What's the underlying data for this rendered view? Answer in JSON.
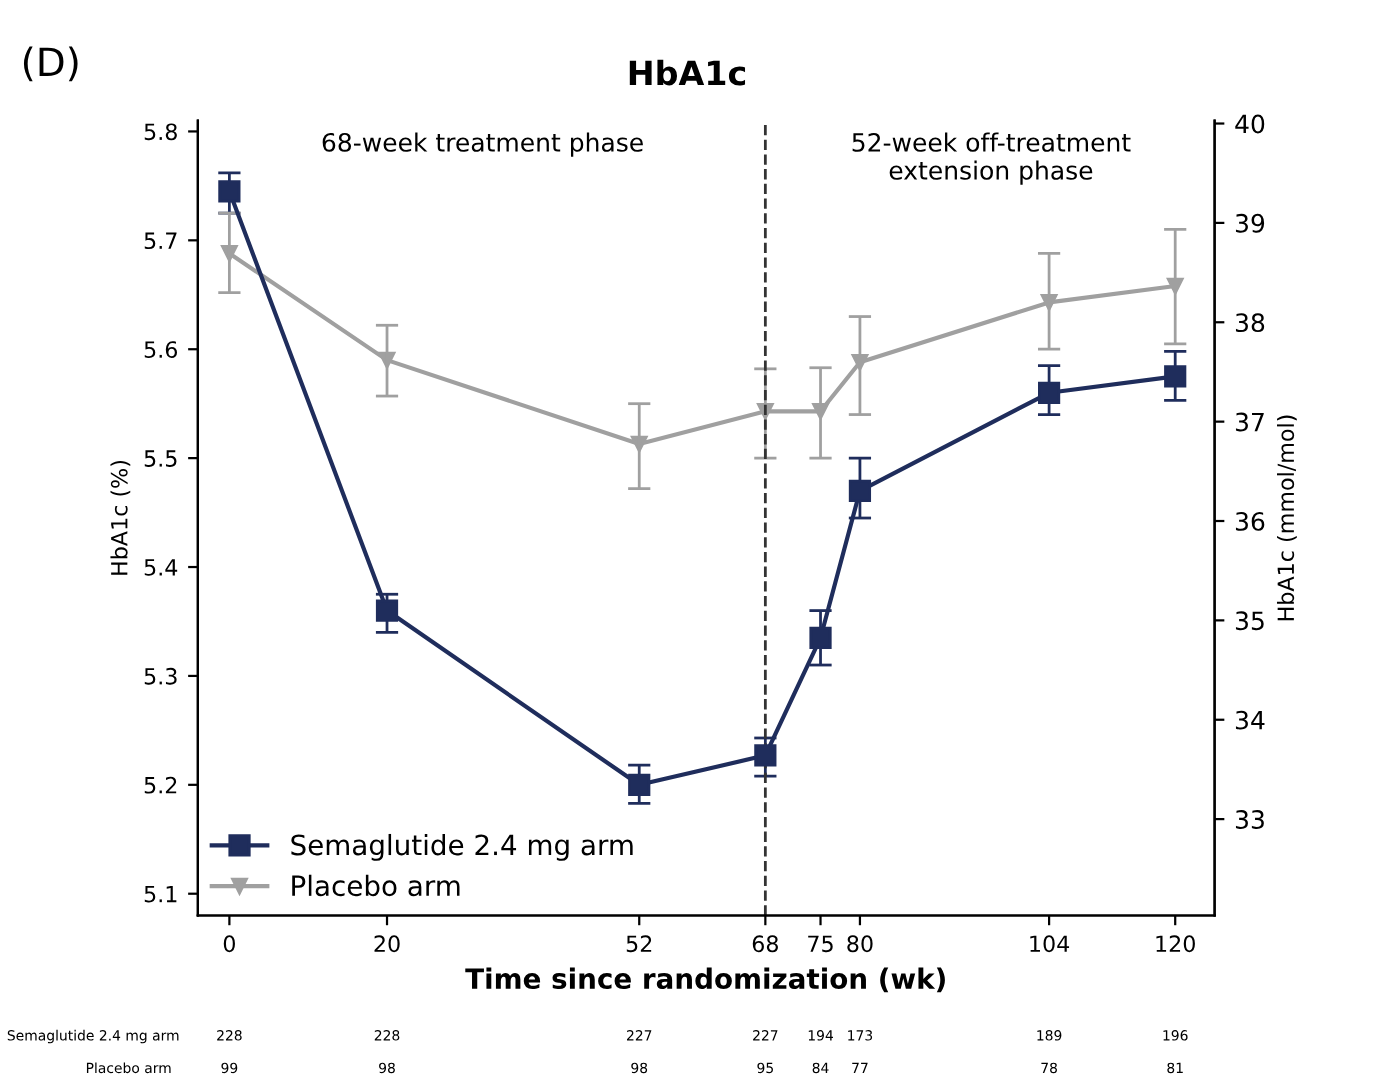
{
  "chart_data": {
    "type": "line",
    "title": "HbA1c",
    "xlabel": "Time since randomization (wk)",
    "ylabel": "HbA1c (%)",
    "y2label": "HbA1c (mmol/mol)",
    "x": [
      0,
      20,
      52,
      68,
      75,
      80,
      104,
      120
    ],
    "series": [
      {
        "name": "Semaglutide 2.4 mg arm",
        "color": "#1f2d5c",
        "marker": "square",
        "values": [
          5.745,
          5.36,
          5.2,
          5.227,
          5.335,
          5.47,
          5.56,
          5.575
        ],
        "errors": [
          [
            5.725,
            5.762
          ],
          [
            5.34,
            5.375
          ],
          [
            5.183,
            5.218
          ],
          [
            5.208,
            5.243
          ],
          [
            5.31,
            5.36
          ],
          [
            5.445,
            5.5
          ],
          [
            5.54,
            5.585
          ],
          [
            5.553,
            5.598
          ]
        ]
      },
      {
        "name": "Placebo arm",
        "color": "#a0a0a0",
        "marker": "triangle",
        "values": [
          5.688,
          5.59,
          5.513,
          5.543,
          5.543,
          5.588,
          5.643,
          5.658
        ],
        "errors": [
          [
            5.652,
            5.725
          ],
          [
            5.557,
            5.622
          ],
          [
            5.472,
            5.55
          ],
          [
            5.5,
            5.582
          ],
          [
            5.5,
            5.583
          ],
          [
            5.54,
            5.63
          ],
          [
            5.6,
            5.688
          ],
          [
            5.605,
            5.71
          ]
        ]
      }
    ],
    "xlim": [
      -4,
      125
    ],
    "xticks": [
      0,
      20,
      52,
      68,
      75,
      80,
      104,
      120
    ],
    "ylim": [
      5.08,
      5.81
    ],
    "yticks": [
      5.1,
      5.2,
      5.3,
      5.4,
      5.5,
      5.6,
      5.7,
      5.8
    ],
    "y2lim": [
      32.03,
      40.03
    ],
    "y2ticks": [
      33,
      34,
      35,
      36,
      37,
      38,
      39,
      40
    ],
    "ref_lines": [
      {
        "axis": "x",
        "value": 68,
        "color": "#333333",
        "line_style": "dashed"
      }
    ],
    "annotations": [
      "(D)",
      "68-week treatment phase",
      "52-week off-treatment\nextension phase",
      "Semaglutide 2.4 mg arm",
      "228",
      "228",
      "227",
      "227",
      "194",
      "173",
      "189",
      "196",
      "Placebo arm",
      "99",
      "98",
      "98",
      "95",
      "84",
      "77",
      "78",
      "81"
    ],
    "legend": "bottom left",
    "line_style": "solid",
    "grid": false
  }
}
